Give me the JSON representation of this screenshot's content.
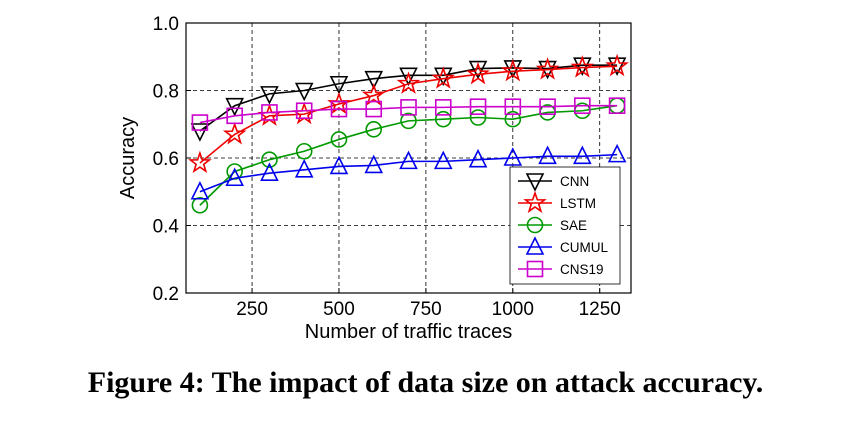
{
  "caption": "Figure 4: The impact of data size on attack accuracy.",
  "chart_data": {
    "type": "line",
    "xlabel": "Number of traffic traces",
    "ylabel": "Accuracy",
    "xlim": [
      60,
      1340
    ],
    "ylim": [
      0.2,
      1.0
    ],
    "xticks": [
      250,
      500,
      750,
      1000,
      1250
    ],
    "yticks": [
      0.2,
      0.4,
      0.6,
      0.8,
      1.0
    ],
    "ytick_labels": [
      "0.2",
      "0.4",
      "0.6",
      "0.8",
      "1.0"
    ],
    "grid": true,
    "legend_position": "lower-right",
    "x": [
      100,
      200,
      300,
      400,
      500,
      600,
      700,
      800,
      900,
      1000,
      1100,
      1200,
      1300
    ],
    "series": [
      {
        "name": "CNN",
        "color": "#000000",
        "marker": "triangle-down",
        "values": [
          0.68,
          0.755,
          0.79,
          0.8,
          0.82,
          0.835,
          0.845,
          0.845,
          0.865,
          0.867,
          0.865,
          0.875,
          0.875
        ]
      },
      {
        "name": "LSTM",
        "color": "#ee0000",
        "marker": "star",
        "values": [
          0.585,
          0.67,
          0.725,
          0.73,
          0.76,
          0.785,
          0.82,
          0.835,
          0.848,
          0.857,
          0.862,
          0.868,
          0.872
        ]
      },
      {
        "name": "SAE",
        "color": "#009900",
        "marker": "circle",
        "values": [
          0.46,
          0.56,
          0.595,
          0.62,
          0.655,
          0.685,
          0.71,
          0.715,
          0.72,
          0.715,
          0.735,
          0.74,
          0.755
        ]
      },
      {
        "name": "CUMUL",
        "color": "#0000ee",
        "marker": "triangle-up",
        "values": [
          0.5,
          0.54,
          0.555,
          0.565,
          0.575,
          0.578,
          0.59,
          0.59,
          0.595,
          0.6,
          0.605,
          0.605,
          0.61
        ]
      },
      {
        "name": "CNS19",
        "color": "#cc00cc",
        "marker": "square",
        "values": [
          0.705,
          0.725,
          0.735,
          0.74,
          0.745,
          0.745,
          0.75,
          0.75,
          0.752,
          0.752,
          0.752,
          0.755,
          0.755
        ]
      }
    ]
  }
}
